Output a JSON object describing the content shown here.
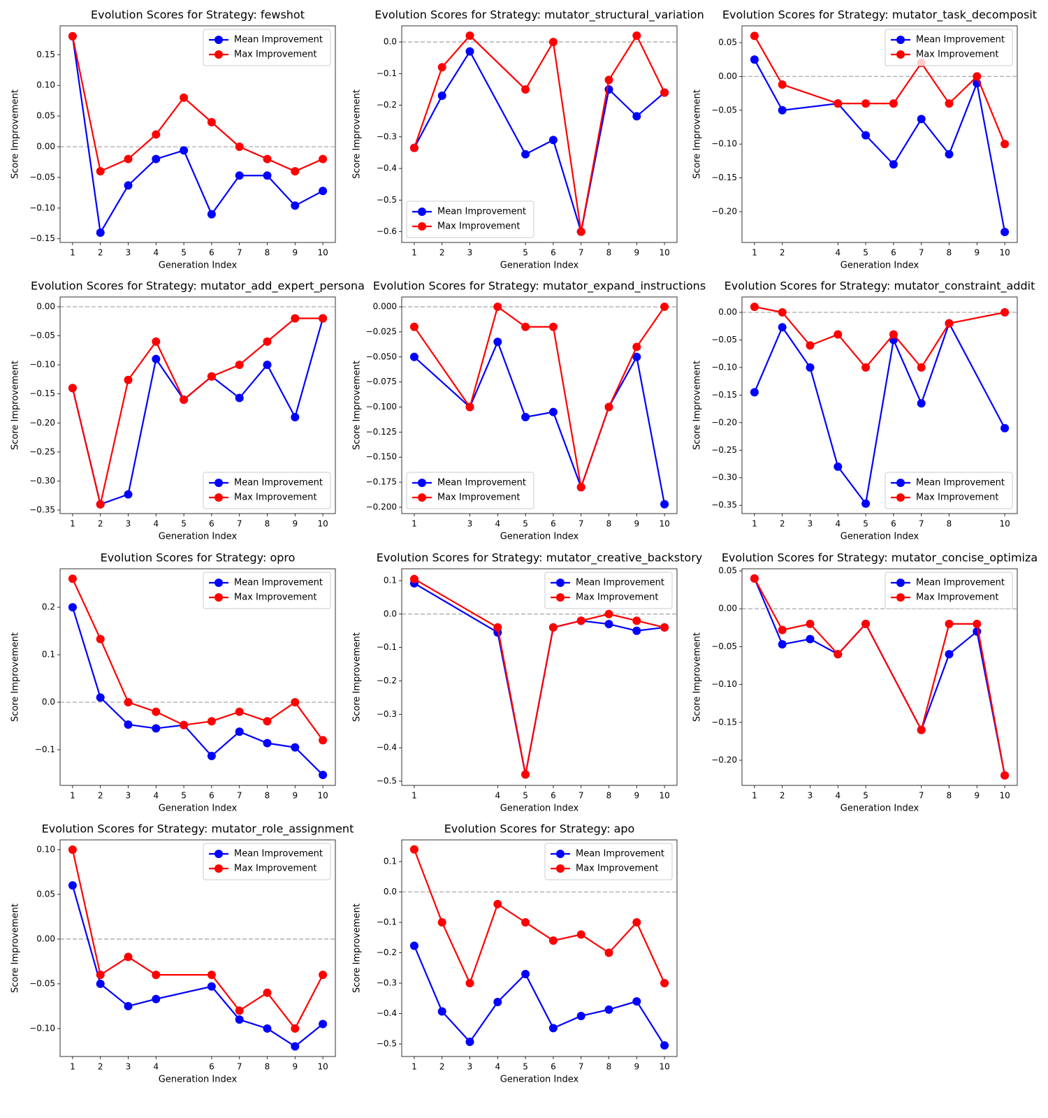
{
  "chart_data": [
    {
      "type": "line",
      "title": "Evolution Scores for Strategy: fewshot",
      "x_label": "Generation Index",
      "y_label": "Score Improvement",
      "x": [
        1,
        2,
        3,
        4,
        5,
        6,
        7,
        8,
        9,
        10
      ],
      "xlim": [
        0.55,
        10.45
      ],
      "xticks": [
        1,
        2,
        3,
        4,
        5,
        6,
        7,
        8,
        9,
        10
      ],
      "ylim": [
        -0.156,
        0.197
      ],
      "yticks": [
        {
          "value": -0.15,
          "label": "−0.15"
        },
        {
          "value": -0.1,
          "label": "−0.10"
        },
        {
          "value": -0.05,
          "label": "−0.05"
        },
        {
          "value": 0,
          "label": "0.00"
        },
        {
          "value": 0.05,
          "label": "0.05"
        },
        {
          "value": 0.1,
          "label": "0.10"
        },
        0.15
      ],
      "hline": 0,
      "legend": "upper right",
      "series": [
        {
          "name": "Mean Improvement",
          "color": "#0000ff",
          "values": [
            0.18,
            -0.14,
            -0.063,
            -0.02,
            -0.006,
            -0.11,
            -0.047,
            -0.047,
            -0.096,
            -0.072
          ]
        },
        {
          "name": "Max Improvement",
          "color": "#ff0000",
          "values": [
            0.18,
            -0.04,
            -0.02,
            0.02,
            0.08,
            0.04,
            0.0,
            -0.02,
            -0.04,
            -0.02
          ]
        }
      ]
    },
    {
      "type": "line",
      "title": "Evolution Scores for Strategy: mutator_structural_variation",
      "x_label": "Generation Index",
      "y_label": "Score Improvement",
      "x": [
        1,
        2,
        3,
        5,
        6,
        7,
        8,
        9,
        10
      ],
      "xlim": [
        0.55,
        10.45
      ],
      "xticks": [
        1,
        2,
        3,
        5,
        6,
        7,
        8,
        9,
        10
      ],
      "ylim": [
        -0.634,
        0.051
      ],
      "yticks": [
        {
          "value": -0.6,
          "label": "−0.6"
        },
        {
          "value": -0.5,
          "label": "−0.5"
        },
        {
          "value": -0.4,
          "label": "−0.4"
        },
        {
          "value": -0.3,
          "label": "−0.3"
        },
        {
          "value": -0.2,
          "label": "−0.2"
        },
        {
          "value": -0.1,
          "label": "−0.1"
        },
        {
          "value": 0,
          "label": "0.0"
        }
      ],
      "hline": 0,
      "legend": "lower left",
      "series": [
        {
          "name": "Mean Improvement",
          "color": "#0000ff",
          "values": [
            -0.335,
            -0.17,
            -0.03,
            -0.355,
            -0.31,
            -0.6,
            -0.15,
            -0.235,
            -0.16
          ]
        },
        {
          "name": "Max Improvement",
          "color": "#ff0000",
          "values": [
            -0.335,
            -0.08,
            0.02,
            -0.15,
            0.0,
            -0.6,
            -0.12,
            0.02,
            -0.16
          ]
        }
      ]
    },
    {
      "type": "line",
      "title": "Evolution Scores for Strategy: mutator_task_decomposit",
      "x_label": "Generation Index",
      "y_label": "Score Improvement",
      "x": [
        1,
        2,
        4,
        5,
        6,
        7,
        8,
        9,
        10
      ],
      "xlim": [
        0.55,
        10.45
      ],
      "xticks": [
        1,
        2,
        4,
        5,
        6,
        7,
        8,
        9,
        10
      ],
      "ylim": [
        -0.2455,
        0.0748
      ],
      "yticks": [
        {
          "value": -0.2,
          "label": "−0.20"
        },
        {
          "value": -0.15,
          "label": "−0.15"
        },
        {
          "value": -0.1,
          "label": "−0.10"
        },
        {
          "value": -0.05,
          "label": "−0.05"
        },
        {
          "value": 0,
          "label": "0.00"
        },
        0.05
      ],
      "hline": 0,
      "legend": "upper right",
      "series": [
        {
          "name": "Mean Improvement",
          "color": "#0000ff",
          "values": [
            0.025,
            -0.05,
            -0.04,
            -0.087,
            -0.13,
            -0.063,
            -0.115,
            -0.01,
            -0.23
          ]
        },
        {
          "name": "Max Improvement",
          "color": "#ff0000",
          "values": [
            0.06,
            -0.012,
            -0.04,
            -0.04,
            -0.04,
            0.02,
            -0.04,
            0.0,
            -0.1
          ]
        }
      ]
    },
    {
      "type": "line",
      "title": "Evolution Scores for Strategy: mutator_add_expert_persona",
      "x_label": "Generation Index",
      "y_label": "Score Improvement",
      "x": [
        1,
        2,
        3,
        4,
        5,
        6,
        7,
        8,
        9,
        10
      ],
      "xlim": [
        0.55,
        10.45
      ],
      "xticks": [
        1,
        2,
        3,
        4,
        5,
        6,
        7,
        8,
        9,
        10
      ],
      "ylim": [
        -0.356,
        0.0168
      ],
      "yticks": [
        {
          "value": -0.35,
          "label": "−0.35"
        },
        {
          "value": -0.3,
          "label": "−0.30"
        },
        {
          "value": -0.25,
          "label": "−0.25"
        },
        {
          "value": -0.2,
          "label": "−0.20"
        },
        {
          "value": -0.15,
          "label": "−0.15"
        },
        {
          "value": -0.1,
          "label": "−0.10"
        },
        {
          "value": -0.05,
          "label": "−0.05"
        },
        {
          "value": 0,
          "label": "0.00"
        }
      ],
      "hline": 0,
      "legend": "lower right",
      "series": [
        {
          "name": "Mean Improvement",
          "color": "#0000ff",
          "values": [
            -0.14,
            -0.34,
            -0.323,
            -0.09,
            -0.16,
            -0.12,
            -0.157,
            -0.1,
            -0.19,
            -0.02
          ]
        },
        {
          "name": "Max Improvement",
          "color": "#ff0000",
          "values": [
            -0.14,
            -0.34,
            -0.126,
            -0.06,
            -0.16,
            -0.12,
            -0.1,
            -0.06,
            -0.02,
            -0.02
          ]
        }
      ]
    },
    {
      "type": "line",
      "title": "Evolution Scores for Strategy: mutator_expand_instructions",
      "x_label": "Generation Index",
      "y_label": "Score Improvement",
      "x": [
        1,
        3,
        4,
        5,
        6,
        7,
        8,
        9,
        10
      ],
      "xlim": [
        0.55,
        10.45
      ],
      "xticks": [
        1,
        3,
        4,
        5,
        6,
        7,
        8,
        9,
        10
      ],
      "ylim": [
        -0.2063,
        0.0098
      ],
      "yticks": [
        {
          "value": -0.2,
          "label": "−0.200"
        },
        {
          "value": -0.175,
          "label": "−0.175"
        },
        {
          "value": -0.15,
          "label": "−0.150"
        },
        {
          "value": -0.125,
          "label": "−0.125"
        },
        {
          "value": -0.1,
          "label": "−0.100"
        },
        {
          "value": -0.075,
          "label": "−0.075"
        },
        {
          "value": -0.05,
          "label": "−0.050"
        },
        {
          "value": -0.025,
          "label": "−0.025"
        },
        {
          "value": 0,
          "label": "0.000"
        }
      ],
      "hline": 0,
      "legend": "lower left",
      "series": [
        {
          "name": "Mean Improvement",
          "color": "#0000ff",
          "values": [
            -0.05,
            -0.1,
            -0.035,
            -0.11,
            -0.105,
            -0.18,
            -0.1,
            -0.05,
            -0.197
          ]
        },
        {
          "name": "Max Improvement",
          "color": "#ff0000",
          "values": [
            -0.02,
            -0.1,
            0.0,
            -0.02,
            -0.02,
            -0.18,
            -0.1,
            -0.04,
            0.0
          ]
        }
      ]
    },
    {
      "type": "line",
      "title": "Evolution Scores for Strategy: mutator_constraint_addit",
      "x_label": "Generation Index",
      "y_label": "Score Improvement",
      "x": [
        1,
        2,
        3,
        4,
        5,
        6,
        7,
        8,
        10
      ],
      "xlim": [
        0.55,
        10.45
      ],
      "xticks": [
        1,
        2,
        3,
        4,
        5,
        6,
        7,
        8,
        10
      ],
      "ylim": [
        -0.365,
        0.0279
      ],
      "yticks": [
        {
          "value": -0.35,
          "label": "−0.35"
        },
        {
          "value": -0.3,
          "label": "−0.30"
        },
        {
          "value": -0.25,
          "label": "−0.25"
        },
        {
          "value": -0.2,
          "label": "−0.20"
        },
        {
          "value": -0.15,
          "label": "−0.15"
        },
        {
          "value": -0.1,
          "label": "−0.10"
        },
        {
          "value": -0.05,
          "label": "−0.05"
        },
        {
          "value": 0,
          "label": "0.00"
        }
      ],
      "hline": 0,
      "legend": "lower right",
      "series": [
        {
          "name": "Mean Improvement",
          "color": "#0000ff",
          "values": [
            -0.145,
            -0.027,
            -0.1,
            -0.28,
            -0.347,
            -0.05,
            -0.165,
            -0.02,
            -0.21
          ]
        },
        {
          "name": "Max Improvement",
          "color": "#ff0000",
          "values": [
            0.01,
            0.0,
            -0.06,
            -0.04,
            -0.1,
            -0.04,
            -0.1,
            -0.02,
            0.0
          ]
        }
      ]
    },
    {
      "type": "line",
      "title": "Evolution Scores for Strategy: opro",
      "x_label": "Generation Index",
      "y_label": "Score Improvement",
      "x": [
        1,
        2,
        3,
        4,
        5,
        6,
        7,
        8,
        9,
        10
      ],
      "xlim": [
        0.55,
        10.45
      ],
      "xticks": [
        1,
        2,
        3,
        4,
        5,
        6,
        7,
        8,
        9,
        10
      ],
      "ylim": [
        -0.175,
        0.281
      ],
      "yticks": [
        {
          "value": -0.1,
          "label": "−0.1"
        },
        {
          "value": 0,
          "label": "0.0"
        },
        0.1,
        0.2
      ],
      "hline": 0,
      "legend": "upper right",
      "series": [
        {
          "name": "Mean Improvement",
          "color": "#0000ff",
          "values": [
            0.2,
            0.01,
            -0.047,
            -0.055,
            -0.048,
            -0.113,
            -0.062,
            -0.086,
            -0.095,
            -0.153
          ]
        },
        {
          "name": "Max Improvement",
          "color": "#ff0000",
          "values": [
            0.26,
            0.133,
            0.0,
            -0.02,
            -0.048,
            -0.04,
            -0.02,
            -0.04,
            0.0,
            -0.08
          ]
        }
      ]
    },
    {
      "type": "line",
      "title": "Evolution Scores for Strategy: mutator_creative_backstory",
      "x_label": "Generation Index",
      "y_label": "Score Improvement",
      "x": [
        1,
        4,
        5,
        6,
        7,
        8,
        9,
        10
      ],
      "xlim": [
        0.55,
        10.45
      ],
      "xticks": [
        1,
        4,
        5,
        6,
        7,
        8,
        9,
        10
      ],
      "ylim": [
        -0.5127,
        0.1355
      ],
      "yticks": [
        {
          "value": -0.5,
          "label": "−0.5"
        },
        {
          "value": -0.4,
          "label": "−0.4"
        },
        {
          "value": -0.3,
          "label": "−0.3"
        },
        {
          "value": -0.2,
          "label": "−0.2"
        },
        {
          "value": -0.1,
          "label": "−0.1"
        },
        {
          "value": 0,
          "label": "0.0"
        },
        0.1
      ],
      "hline": 0,
      "legend": "upper right",
      "series": [
        {
          "name": "Mean Improvement",
          "color": "#0000ff",
          "values": [
            0.092,
            -0.055,
            -0.48,
            -0.04,
            -0.02,
            -0.03,
            -0.05,
            -0.04
          ]
        },
        {
          "name": "Max Improvement",
          "color": "#ff0000",
          "values": [
            0.105,
            -0.04,
            -0.48,
            -0.04,
            -0.02,
            0.0,
            -0.02,
            -0.04
          ]
        }
      ]
    },
    {
      "type": "line",
      "title": "Evolution Scores for Strategy: mutator_concise_optimiza",
      "x_label": "Generation Index",
      "y_label": "Score Improvement",
      "x": [
        1,
        2,
        3,
        4,
        5,
        7,
        8,
        9,
        10
      ],
      "xlim": [
        0.55,
        10.45
      ],
      "xticks": [
        1,
        2,
        3,
        4,
        5,
        7,
        8,
        9,
        10
      ],
      "ylim": [
        -0.2332,
        0.0528
      ],
      "yticks": [
        {
          "value": -0.2,
          "label": "−0.20"
        },
        {
          "value": -0.15,
          "label": "−0.15"
        },
        {
          "value": -0.1,
          "label": "−0.10"
        },
        {
          "value": -0.05,
          "label": "−0.05"
        },
        {
          "value": 0,
          "label": "0.00"
        },
        0.05
      ],
      "hline": 0,
      "legend": "upper right",
      "series": [
        {
          "name": "Mean Improvement",
          "color": "#0000ff",
          "values": [
            0.04,
            -0.047,
            -0.04,
            -0.06,
            -0.02,
            -0.16,
            -0.06,
            -0.03,
            -0.22
          ]
        },
        {
          "name": "Max Improvement",
          "color": "#ff0000",
          "values": [
            0.04,
            -0.028,
            -0.02,
            -0.06,
            -0.02,
            -0.16,
            -0.02,
            -0.02,
            -0.22
          ]
        }
      ]
    },
    {
      "type": "line",
      "title": "Evolution Scores for Strategy: mutator_role_assignment",
      "x_label": "Generation Index",
      "y_label": "Score Improvement",
      "x": [
        1,
        2,
        3,
        4,
        6,
        7,
        8,
        9,
        10
      ],
      "xlim": [
        0.55,
        10.45
      ],
      "xticks": [
        1,
        2,
        3,
        4,
        6,
        7,
        8,
        9,
        10
      ],
      "ylim": [
        -0.1313,
        0.1109
      ],
      "yticks": [
        {
          "value": -0.1,
          "label": "−0.10"
        },
        {
          "value": -0.05,
          "label": "−0.05"
        },
        {
          "value": 0,
          "label": "0.00"
        },
        0.05,
        {
          "value": 0.1,
          "label": "0.10"
        }
      ],
      "hline": 0,
      "legend": "upper right",
      "series": [
        {
          "name": "Mean Improvement",
          "color": "#0000ff",
          "values": [
            0.06,
            -0.05,
            -0.075,
            -0.067,
            -0.053,
            -0.09,
            -0.1,
            -0.12,
            -0.095
          ]
        },
        {
          "name": "Max Improvement",
          "color": "#ff0000",
          "values": [
            0.1,
            -0.04,
            -0.02,
            -0.04,
            -0.04,
            -0.08,
            -0.06,
            -0.1,
            -0.04
          ]
        }
      ]
    },
    {
      "type": "line",
      "title": "Evolution Scores for Strategy: apo",
      "x_label": "Generation Index",
      "y_label": "Score Improvement",
      "x": [
        1,
        2,
        3,
        4,
        5,
        6,
        7,
        8,
        9,
        10
      ],
      "xlim": [
        0.55,
        10.45
      ],
      "xticks": [
        1,
        2,
        3,
        4,
        5,
        6,
        7,
        8,
        9,
        10
      ],
      "ylim": [
        -0.5414,
        0.1713
      ],
      "yticks": [
        {
          "value": -0.5,
          "label": "−0.5"
        },
        {
          "value": -0.4,
          "label": "−0.4"
        },
        {
          "value": -0.3,
          "label": "−0.3"
        },
        {
          "value": -0.2,
          "label": "−0.2"
        },
        {
          "value": -0.1,
          "label": "−0.1"
        },
        {
          "value": 0,
          "label": "0.0"
        },
        0.1
      ],
      "hline": 0,
      "legend": "upper right",
      "series": [
        {
          "name": "Mean Improvement",
          "color": "#0000ff",
          "values": [
            -0.177,
            -0.393,
            -0.493,
            -0.362,
            -0.27,
            -0.448,
            -0.408,
            -0.387,
            -0.36,
            -0.505
          ]
        },
        {
          "name": "Max Improvement",
          "color": "#ff0000",
          "values": [
            0.14,
            -0.1,
            -0.3,
            -0.04,
            -0.1,
            -0.16,
            -0.14,
            -0.2,
            -0.1,
            -0.3
          ]
        }
      ]
    }
  ]
}
